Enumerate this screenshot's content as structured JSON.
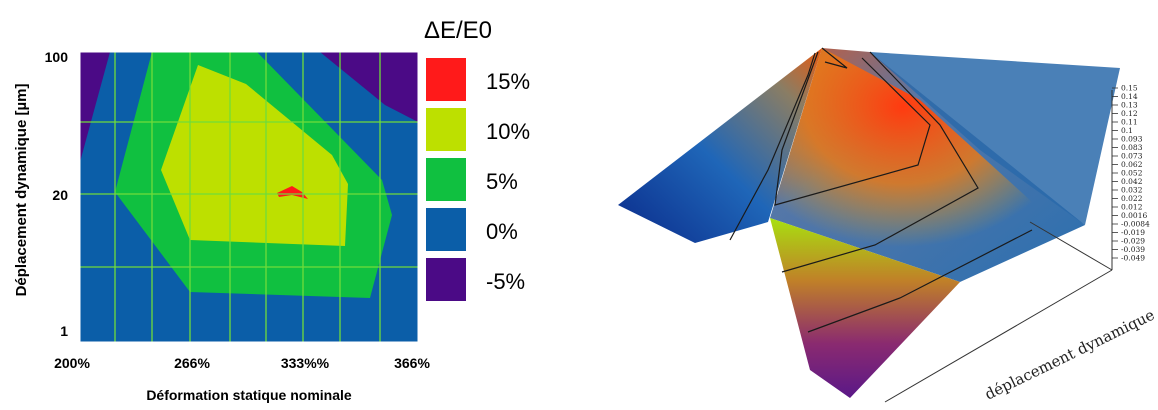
{
  "chart_data": [
    {
      "type": "heatmap",
      "title": "",
      "xlabel": "Déformation statique nominale",
      "ylabel": "Déplacement dynamique [µm]",
      "x_ticks": [
        "200%",
        "266%",
        "333%%",
        "366%"
      ],
      "y_ticks": [
        "100",
        "20",
        "1"
      ],
      "legend": {
        "title": "ΔE/E0",
        "placement": "right",
        "entries": [
          {
            "label": "15%",
            "color": "#ff1a1a"
          },
          {
            "label": "10%",
            "color": "#bde000"
          },
          {
            "label": "5%",
            "color": "#10c040"
          },
          {
            "label": "0%",
            "color": "#0b5ea8"
          },
          {
            "label": "-5%",
            "color": "#4b0a86"
          }
        ]
      },
      "grid": true,
      "grid_color": "#6fdc3a"
    },
    {
      "type": "surface",
      "axis_label": "déplacement dynamique",
      "colorbar_ticks": [
        "0.15",
        "0.14",
        "0.13",
        "0.12",
        "0.11",
        "0.1",
        "0.093",
        "0.083",
        "0.073",
        "0.062",
        "0.052",
        "0.042",
        "0.032",
        "0.022",
        "0.012",
        "0.0016",
        "-0.0084",
        "-0.019",
        "-0.029",
        "-0.039",
        "-0.049"
      ],
      "colorbar_range": [
        -0.049,
        0.15
      ]
    }
  ]
}
